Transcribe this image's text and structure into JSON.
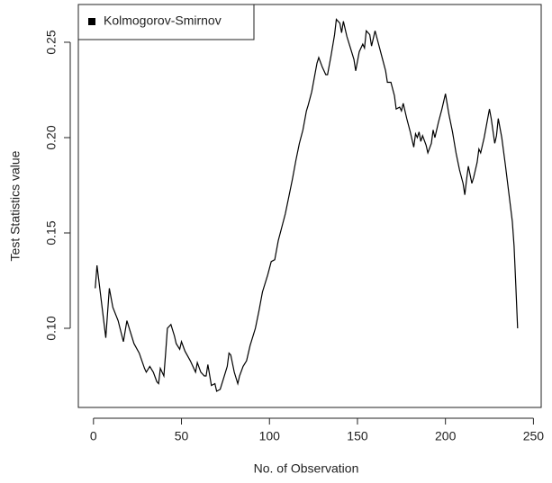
{
  "chart_data": {
    "type": "line",
    "xlabel": "No. of Observation",
    "ylabel": "Test Statistics value",
    "x": [
      1,
      2,
      7,
      9,
      11,
      14,
      17,
      19,
      20,
      23,
      26,
      29,
      30,
      32,
      34,
      36,
      37,
      38,
      40,
      41,
      42,
      44,
      46,
      47,
      49,
      50,
      52,
      55,
      58,
      59,
      61,
      63,
      64,
      65,
      67,
      69,
      70,
      72,
      74,
      76,
      77,
      78,
      80,
      82,
      83,
      85,
      87,
      89,
      92,
      94,
      96,
      99,
      101,
      103,
      105,
      107,
      109,
      111,
      113,
      115,
      117,
      119,
      121,
      122,
      124,
      126,
      127,
      128,
      130,
      132,
      133,
      135,
      137,
      138,
      140,
      141,
      142,
      144,
      146,
      148,
      149,
      151,
      153,
      154,
      155,
      157,
      158,
      160,
      162,
      164,
      166,
      167,
      169,
      171,
      172,
      174,
      175,
      176,
      178,
      180,
      182,
      183,
      184,
      185,
      186,
      187,
      189,
      190,
      192,
      193,
      194,
      196,
      198,
      200,
      202,
      204,
      206,
      208,
      210,
      211,
      212,
      213,
      215,
      216,
      218,
      219,
      220,
      222,
      224,
      225,
      226,
      228,
      229,
      230,
      232,
      234,
      236,
      238,
      239,
      240,
      241
    ],
    "series": [
      {
        "name": "Kolmogorov-Smirnov",
        "color": "#000000",
        "values": [
          0.121,
          0.133,
          0.095,
          0.121,
          0.111,
          0.104,
          0.093,
          0.104,
          0.101,
          0.092,
          0.087,
          0.079,
          0.077,
          0.08,
          0.077,
          0.072,
          0.071,
          0.079,
          0.075,
          0.087,
          0.1,
          0.102,
          0.096,
          0.092,
          0.089,
          0.093,
          0.088,
          0.083,
          0.077,
          0.082,
          0.077,
          0.075,
          0.075,
          0.081,
          0.07,
          0.071,
          0.067,
          0.068,
          0.074,
          0.08,
          0.087,
          0.086,
          0.077,
          0.071,
          0.075,
          0.08,
          0.083,
          0.091,
          0.1,
          0.109,
          0.119,
          0.128,
          0.135,
          0.136,
          0.146,
          0.153,
          0.16,
          0.169,
          0.178,
          0.188,
          0.197,
          0.204,
          0.214,
          0.217,
          0.224,
          0.234,
          0.239,
          0.242,
          0.237,
          0.233,
          0.233,
          0.243,
          0.254,
          0.262,
          0.26,
          0.255,
          0.261,
          0.253,
          0.247,
          0.241,
          0.235,
          0.245,
          0.249,
          0.247,
          0.256,
          0.254,
          0.248,
          0.256,
          0.249,
          0.242,
          0.235,
          0.229,
          0.229,
          0.222,
          0.215,
          0.216,
          0.214,
          0.218,
          0.21,
          0.203,
          0.195,
          0.202,
          0.2,
          0.203,
          0.198,
          0.201,
          0.196,
          0.192,
          0.197,
          0.204,
          0.2,
          0.208,
          0.215,
          0.223,
          0.212,
          0.203,
          0.192,
          0.183,
          0.176,
          0.17,
          0.178,
          0.185,
          0.176,
          0.179,
          0.187,
          0.194,
          0.192,
          0.2,
          0.21,
          0.215,
          0.21,
          0.197,
          0.201,
          0.21,
          0.2,
          0.186,
          0.171,
          0.156,
          0.143,
          0.122,
          0.1
        ]
      }
    ],
    "xlim": [
      -8.6,
      254.4
    ],
    "ylim": [
      0.0585,
      0.2698
    ],
    "xticks": [
      0,
      50,
      100,
      150,
      200,
      250
    ],
    "yticks": [
      {
        "value": 0.1,
        "label": "0.10"
      },
      {
        "value": 0.15,
        "label": "0.15"
      },
      {
        "value": 0.2,
        "label": "0.20"
      },
      {
        "value": 0.25,
        "label": "0.25"
      }
    ],
    "legend": "top-left"
  }
}
